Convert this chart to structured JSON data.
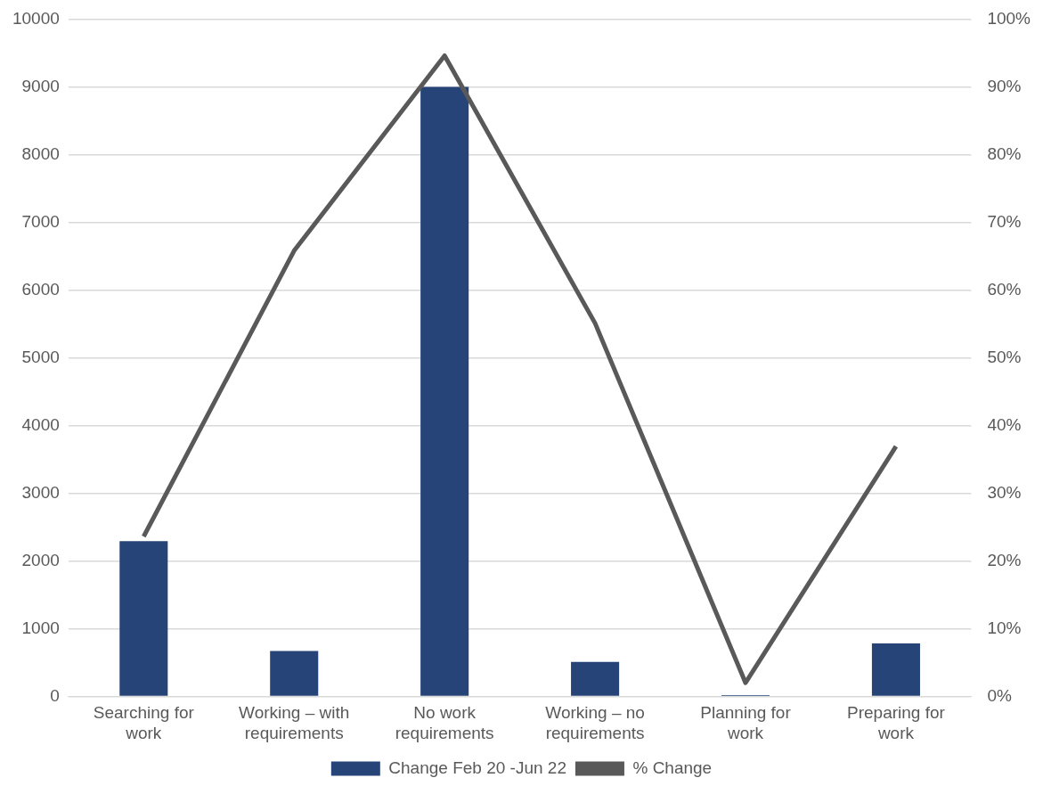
{
  "chart_data": {
    "type": "bar",
    "categories": [
      "Searching for work",
      "Working – with requirements",
      "No work requirements",
      "Working – no requirements",
      "Planning for work",
      "Preparing for work"
    ],
    "series": [
      {
        "name": "Change Feb 20 -Jun 22",
        "color": "#264478",
        "values": [
          2290,
          670,
          9000,
          510,
          20,
          780
        ]
      },
      {
        "name": "% Change",
        "type": "line",
        "axis": "y2",
        "color": "#595959",
        "values": [
          23.6,
          65.8,
          94.6,
          55.1,
          2.0,
          36.9
        ]
      }
    ],
    "ylim": [
      0,
      10000
    ],
    "yticks": [
      0,
      1000,
      2000,
      3000,
      4000,
      5000,
      6000,
      7000,
      8000,
      9000,
      10000
    ],
    "y2lim": [
      0,
      100
    ],
    "y2ticks": [
      {
        "value": 0,
        "label": "0%"
      },
      {
        "value": 10,
        "label": "10%"
      },
      {
        "value": 20,
        "label": "20%"
      },
      {
        "value": 30,
        "label": "30%"
      },
      {
        "value": 40,
        "label": "40%"
      },
      {
        "value": 50,
        "label": "50%"
      },
      {
        "value": 60,
        "label": "60%"
      },
      {
        "value": 70,
        "label": "70%"
      },
      {
        "value": 80,
        "label": "80%"
      },
      {
        "value": 90,
        "label": "90%"
      },
      {
        "value": 100,
        "label": "100%"
      }
    ],
    "grid": "y",
    "legend": "bottom",
    "marker": "none"
  }
}
